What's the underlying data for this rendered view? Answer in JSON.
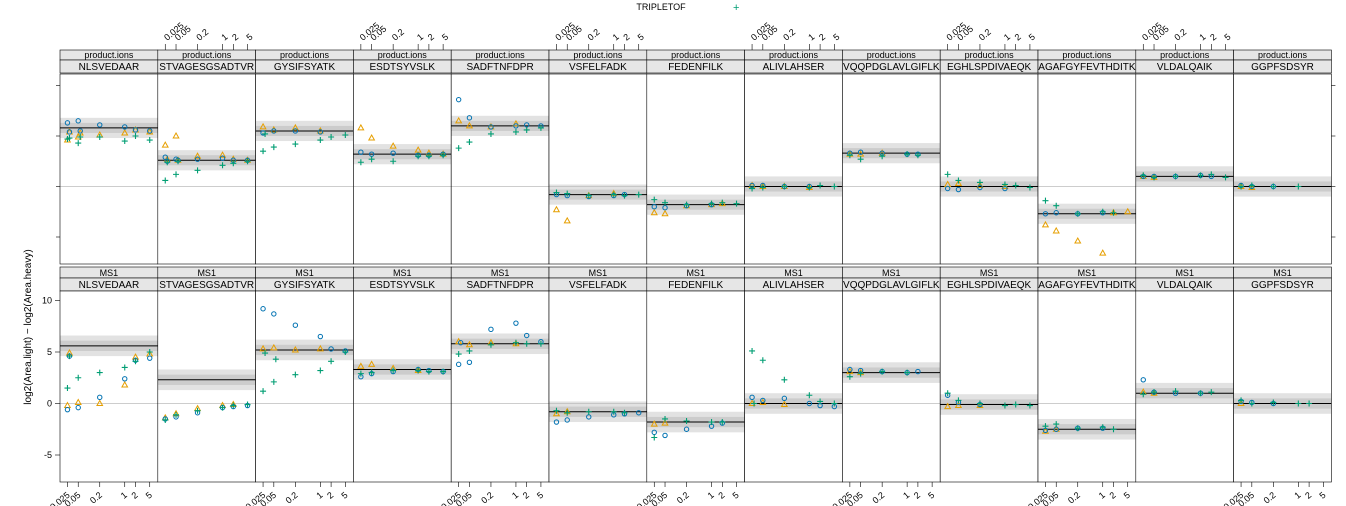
{
  "legend": {
    "items": [
      {
        "name": "TRIPLETOF",
        "color": "#009E73",
        "symbol": "+"
      }
    ]
  },
  "ylabel": "log2(Area.light) − log2(Area.heavy)",
  "colors": {
    "blue": "#0072B2",
    "orange": "#E69F00",
    "green": "#009E73",
    "band_outer": "#e2e2e2",
    "band_inner": "#cccccc"
  },
  "chart_data": {
    "type": "scatter",
    "rows": [
      "product.ions",
      "MS1"
    ],
    "peptides": [
      "NLSVEDAAR",
      "STVAGESGSADTVR",
      "GYSIFSYATK",
      "ESDTSYVSLK",
      "SADFTNFDPR",
      "VSFELFADK",
      "FEDENFILK",
      "ALIVLAHSER",
      "VQQPDGLAVLGIFLK",
      "EGHLSPDIVAEQK",
      "AGAFGYFEVTHDITK",
      "VLDALQAIK",
      "GGPFSDSYR"
    ],
    "x_ticks": [
      "0.025",
      "0.05",
      "0.2",
      "1",
      "2",
      "5"
    ],
    "x_tick_values": [
      0.025,
      0.05,
      0.2,
      1,
      2,
      5
    ],
    "y_ticks": [
      -5,
      0,
      5,
      10
    ],
    "ylim": [
      -10,
      15
    ],
    "series_colors": {
      "blue": "#0072B2",
      "orange": "#E69F00",
      "green": "#009E73"
    },
    "panels": {
      "product.ions": {
        "NLSVEDAAR": {
          "median": 5.8,
          "blue": [
            6.3,
            6.5,
            6.1,
            5.9,
            5.6,
            5.5,
            5.4,
            5.5
          ],
          "orange": [
            4.6,
            4.9,
            5.1,
            5.3,
            5.6,
            5.4,
            5.4,
            5.3
          ],
          "green": [
            4.7,
            4.3,
            4.9,
            4.5,
            5.0,
            4.6,
            4.8,
            4.9
          ]
        },
        "STVAGESGSADTVR": {
          "median": 2.6,
          "blue": [
            2.9,
            2.7,
            2.7,
            2.8,
            2.6,
            2.6,
            2.5,
            2.6
          ],
          "orange": [
            4.1,
            5.0,
            3.0,
            3.1,
            2.7,
            2.6,
            2.7,
            2.6
          ],
          "green": [
            0.6,
            1.2,
            1.6,
            2.1,
            2.3,
            2.5,
            2.4,
            2.5
          ]
        },
        "GYSIFSYATK": {
          "median": 5.5,
          "blue": [
            5.3,
            5.5,
            5.5,
            5.4
          ],
          "orange": [
            5.9,
            5.6,
            5.8,
            5.5
          ],
          "green": [
            3.5,
            3.9,
            4.2,
            4.6,
            4.9,
            5.1,
            5.2
          ]
        },
        "ESDTSYVSLK": {
          "median": 3.2,
          "blue": [
            3.4,
            3.2,
            3.3,
            3.1,
            3.1,
            3.2
          ],
          "orange": [
            5.8,
            4.8,
            4.0,
            3.6,
            3.3,
            3.2
          ],
          "green": [
            2.4,
            2.7,
            2.5,
            3.0,
            3.0,
            3.1
          ]
        },
        "SADFTNFDPR": {
          "median": 6.0,
          "blue": [
            8.6,
            6.8,
            5.9,
            6.0,
            6.1,
            6.0
          ],
          "orange": [
            6.5,
            6.0,
            5.9,
            6.2
          ],
          "green": [
            3.8,
            4.4,
            5.2,
            5.4,
            5.6,
            5.8
          ]
        },
        "VSFELFADK": {
          "median": -0.8,
          "blue": [
            -0.8,
            -0.9,
            -1.0,
            -0.9,
            -0.8
          ],
          "orange": [
            -2.3,
            -3.4,
            -0.9,
            -0.7
          ],
          "green": [
            -0.6,
            -0.7,
            -0.9,
            -0.8,
            -0.9,
            -0.8
          ]
        },
        "FEDENFILK": {
          "median": -1.8,
          "blue": [
            -2.0,
            -2.1,
            -1.9,
            -1.8
          ],
          "orange": [
            -2.6,
            -2.7,
            -1.9,
            -1.8,
            -1.7
          ],
          "green": [
            -1.3,
            -1.6,
            -1.8,
            -1.7,
            -1.6,
            -1.7
          ]
        },
        "ALIVLAHSER": {
          "median": 0.0,
          "blue": [
            0.1,
            0.1,
            0.0,
            0.0
          ],
          "orange": [
            0.1,
            0.0,
            0.0,
            -0.1
          ],
          "green": [
            -0.2,
            -0.1,
            0.0,
            -0.1,
            0.1,
            0.0
          ]
        },
        "VQQPDGLAVLGIFLK": {
          "median": 3.3,
          "blue": [
            3.3,
            3.4,
            3.3,
            3.2,
            3.2
          ],
          "orange": [
            3.2,
            3.2,
            3.3
          ],
          "green": [
            3.1,
            2.7,
            3.0,
            3.2,
            3.1
          ]
        },
        "EGHLSPDIVAEQK": {
          "median": 0.0,
          "blue": [
            -0.2,
            -0.3,
            -0.1,
            -0.2
          ],
          "orange": [
            0.2,
            0.3,
            0.1,
            0.0
          ],
          "green": [
            1.2,
            0.6,
            0.4,
            0.2,
            0.1,
            -0.1
          ]
        },
        "AGAFGYFEVTHDITK": {
          "median": -2.7,
          "blue": [
            -2.7,
            -2.6,
            -2.7,
            -2.6
          ],
          "orange": [
            -3.8,
            -4.4,
            -5.4,
            -6.6,
            -2.6,
            -2.5
          ],
          "green": [
            -1.4,
            -1.9,
            -2.7,
            -2.5,
            -2.6
          ]
        },
        "VLDALQAIK": {
          "median": 1.0,
          "blue": [
            1.0,
            1.0,
            1.0,
            1.1,
            1.0
          ],
          "orange": [
            1.0,
            0.9
          ],
          "green": [
            1.1,
            0.9,
            1.0,
            1.1,
            1.2,
            0.9
          ]
        },
        "GGPFSDSYR": {
          "median": 0.0,
          "blue": [
            0.1,
            0.0,
            0.0
          ],
          "orange": [
            0.0,
            -0.1
          ],
          "green": [
            0.0,
            0.1,
            0.0,
            0.0
          ]
        }
      },
      "MS1": {
        "NLSVEDAAR": {
          "median": 5.6,
          "blue": [
            -0.6,
            -0.4,
            0.6,
            2.4,
            4.2,
            4.4,
            4.6
          ],
          "orange": [
            -0.2,
            0.1,
            0.0,
            1.8,
            4.5,
            4.8,
            4.9
          ],
          "green": [
            1.5,
            2.5,
            3.0,
            3.5,
            4.1,
            5.0,
            4.6
          ]
        },
        "STVAGESGSADTVR": {
          "median": 2.3,
          "blue": [
            -1.5,
            -1.3,
            -0.9,
            -0.4,
            -0.3,
            -0.2
          ],
          "orange": [
            -1.4,
            -1.0,
            -0.5,
            -0.2,
            -0.1
          ],
          "green": [
            -1.6,
            -1.1,
            -0.7,
            -0.4,
            -0.2,
            -0.1
          ]
        },
        "GYSIFSYATK": {
          "median": 5.2,
          "blue": [
            9.2,
            8.7,
            7.6,
            6.5,
            5.3,
            5.1
          ],
          "orange": [
            5.3,
            5.4,
            5.2,
            5.3
          ],
          "green": [
            1.2,
            2.1,
            2.8,
            3.2,
            4.1,
            5.0,
            4.9,
            4.3
          ]
        },
        "ESDTSYVSLK": {
          "median": 3.3,
          "blue": [
            2.6,
            2.9,
            3.1,
            3.3,
            3.2,
            3.1
          ],
          "orange": [
            3.6,
            3.8,
            3.4,
            3.2
          ],
          "green": [
            2.9,
            3.0,
            3.2,
            3.2,
            3.1,
            3.1
          ]
        },
        "SADFTNFDPR": {
          "median": 5.8,
          "blue": [
            3.8,
            4.0,
            7.2,
            7.8,
            6.6,
            6.0,
            5.9
          ],
          "orange": [
            6.0,
            5.7,
            5.9,
            5.8
          ],
          "green": [
            4.8,
            5.1,
            5.7,
            5.9,
            5.8,
            5.8
          ]
        },
        "VSFELFADK": {
          "median": -0.8,
          "blue": [
            -1.8,
            -1.6,
            -1.3,
            -1.1,
            -1.0,
            -0.9
          ],
          "orange": [
            -1.0,
            -0.8
          ],
          "green": [
            -0.7,
            -0.9,
            -0.8,
            -0.8,
            -0.9
          ]
        },
        "FEDENFILK": {
          "median": -1.8,
          "blue": [
            -2.8,
            -3.1,
            -2.5,
            -2.2,
            -1.9
          ],
          "orange": [
            -2.0,
            -1.9
          ],
          "green": [
            -3.3,
            -1.5,
            -1.7,
            -1.8,
            -1.8
          ]
        },
        "ALIVLAHSER": {
          "median": 0.0,
          "blue": [
            0.6,
            0.3,
            0.5,
            0.0,
            -0.2,
            -0.3
          ],
          "orange": [
            0.0,
            0.1,
            -0.1
          ],
          "green": [
            5.1,
            4.2,
            2.3,
            0.8,
            0.2,
            0.0,
            0.0
          ]
        },
        "VQQPDGLAVLGIFLK": {
          "median": 3.0,
          "blue": [
            3.3,
            3.2,
            3.1,
            3.0,
            3.1
          ],
          "orange": [
            3.1,
            3.0
          ],
          "green": [
            2.6,
            2.9,
            3.1,
            3.0
          ]
        },
        "EGHLSPDIVAEQK": {
          "median": -0.1,
          "blue": [
            0.8,
            0.1,
            -0.1
          ],
          "orange": [
            -0.3,
            -0.2,
            -0.2
          ],
          "green": [
            1.0,
            0.3,
            0.0,
            -0.2,
            -0.1,
            -0.2
          ]
        },
        "AGAFGYFEVTHDITK": {
          "median": -2.5,
          "blue": [
            -2.6,
            -2.5,
            -2.4,
            -2.4
          ],
          "orange": [
            -2.7,
            -2.5
          ],
          "green": [
            -2.2,
            -2.0,
            -2.4,
            -2.3,
            -2.5
          ]
        },
        "VLDALQAIK": {
          "median": 1.0,
          "blue": [
            2.3,
            1.1,
            1.0,
            1.0
          ],
          "orange": [
            1.1,
            1.0
          ],
          "green": [
            0.9,
            1.1,
            1.2,
            1.0,
            1.1
          ]
        },
        "GGPFSDSYR": {
          "median": 0.0,
          "blue": [
            0.2,
            0.1,
            0.0
          ],
          "orange": [
            0.0
          ],
          "green": [
            0.3,
            0.0,
            0.1,
            0.0,
            0.0
          ]
        }
      }
    }
  }
}
